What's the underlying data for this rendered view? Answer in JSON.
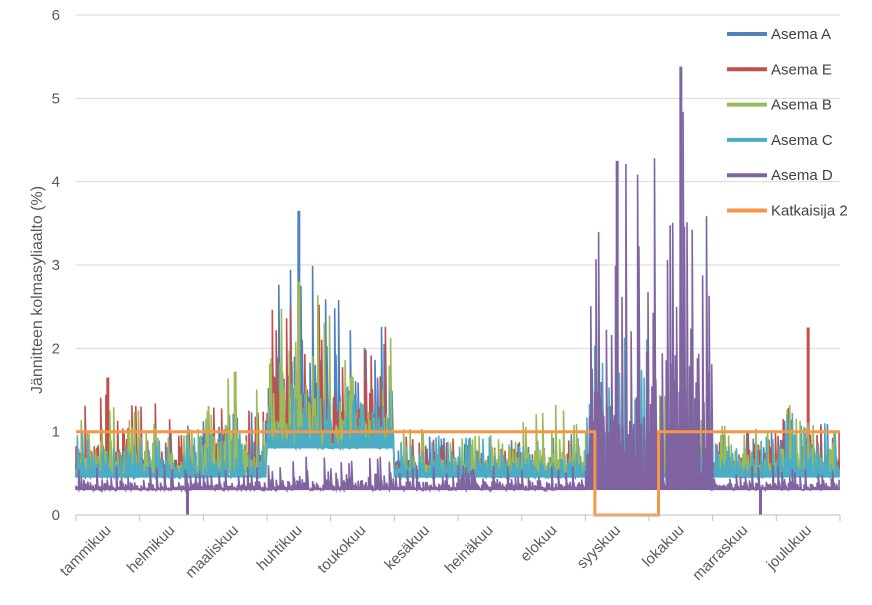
{
  "chart_data": {
    "type": "line",
    "title": "",
    "xlabel": "",
    "ylabel": "Jännitteen kolmasyliaalto (%)",
    "ylim": [
      0,
      6
    ],
    "yticks": [
      0,
      1,
      2,
      3,
      4,
      5,
      6
    ],
    "grid": true,
    "legend_position": "top-right",
    "categories": [
      "tammikuu",
      "helmikuu",
      "maaliskuu",
      "huhtikuu",
      "toukokuu",
      "kesäkuu",
      "heinäkuu",
      "elokuu",
      "syyskuu",
      "lokakuu",
      "marraskuu",
      "joulukuu"
    ],
    "series": [
      {
        "name": "Asema A",
        "color": "#4f81bd",
        "monthly_envelope": [
          [
            0.45,
            1.05
          ],
          [
            0.45,
            1.1
          ],
          [
            0.5,
            1.25
          ],
          [
            1.0,
            3.05
          ],
          [
            0.9,
            2.6
          ],
          [
            0.45,
            0.95
          ],
          [
            0.45,
            0.95
          ],
          [
            0.45,
            1.0
          ],
          [
            0.5,
            1.0
          ],
          [
            0.5,
            1.1
          ],
          [
            0.45,
            1.05
          ],
          [
            0.5,
            1.2
          ]
        ],
        "peaks": [
          {
            "x": "huhtikuu",
            "value": 3.65
          },
          {
            "x": "lokakuu",
            "value": 2.47
          }
        ]
      },
      {
        "name": "Asema E",
        "color": "#c0504d",
        "monthly_envelope": [
          [
            0.5,
            1.45
          ],
          [
            0.5,
            1.35
          ],
          [
            0.5,
            1.35
          ],
          [
            0.9,
            2.55
          ],
          [
            0.8,
            2.3
          ],
          [
            0.5,
            0.95
          ],
          [
            0.5,
            0.95
          ],
          [
            0.5,
            1.0
          ],
          [
            0.5,
            1.0
          ],
          [
            0.5,
            1.0
          ],
          [
            0.5,
            1.25
          ],
          [
            0.5,
            1.3
          ]
        ],
        "peaks": [
          {
            "x": "tammikuu",
            "value": 1.65
          },
          {
            "x": "huhtikuu",
            "value": 2.75
          },
          {
            "x": "joulukuu",
            "value": 2.25
          }
        ]
      },
      {
        "name": "Asema B",
        "color": "#9bbb59",
        "monthly_envelope": [
          [
            0.5,
            1.35
          ],
          [
            0.5,
            1.1
          ],
          [
            0.5,
            1.7
          ],
          [
            0.8,
            2.7
          ],
          [
            0.8,
            2.15
          ],
          [
            0.5,
            1.15
          ],
          [
            0.5,
            1.0
          ],
          [
            0.5,
            1.35
          ],
          [
            0.5,
            1.0
          ],
          [
            0.5,
            1.6
          ],
          [
            0.5,
            1.15
          ],
          [
            0.5,
            1.4
          ]
        ],
        "peaks": [
          {
            "x": "maaliskuu",
            "value": 1.72
          },
          {
            "x": "huhtikuu",
            "value": 2.8
          }
        ]
      },
      {
        "name": "Asema C",
        "color": "#4bacc6",
        "monthly_envelope": [
          [
            0.45,
            1.0
          ],
          [
            0.45,
            1.0
          ],
          [
            0.45,
            1.05
          ],
          [
            0.8,
            1.6
          ],
          [
            0.8,
            1.55
          ],
          [
            0.45,
            1.0
          ],
          [
            0.45,
            1.0
          ],
          [
            0.45,
            1.1
          ],
          [
            0.45,
            2.2
          ],
          [
            0.45,
            1.1
          ],
          [
            0.45,
            1.05
          ],
          [
            0.45,
            1.25
          ]
        ],
        "peaks": [
          {
            "x": "syyskuu",
            "value": 2.2
          },
          {
            "x": "lokakuu",
            "value": 2.55
          }
        ]
      },
      {
        "name": "Asema D",
        "color": "#8064a2",
        "monthly_envelope": [
          [
            0.3,
            0.6
          ],
          [
            0.3,
            0.6
          ],
          [
            0.3,
            0.6
          ],
          [
            0.3,
            0.7
          ],
          [
            0.3,
            0.7
          ],
          [
            0.3,
            0.6
          ],
          [
            0.3,
            0.6
          ],
          [
            0.3,
            0.6
          ],
          [
            0.3,
            4.25
          ],
          [
            0.3,
            5.38
          ],
          [
            0.3,
            0.6
          ],
          [
            0.3,
            0.6
          ]
        ],
        "peaks": [
          {
            "x": "syyskuu",
            "value": 4.25
          },
          {
            "x": "lokakuu",
            "value": 5.38
          }
        ],
        "dips": [
          {
            "x": "helmikuu",
            "value": 0
          },
          {
            "x": "marraskuu",
            "value": 0
          }
        ]
      },
      {
        "name": "Katkaisija 2",
        "color": "#f79646",
        "step": [
          {
            "from": "tammikuu",
            "to": "syyskuu",
            "value": 1
          },
          {
            "from": "syyskuu",
            "to": "lokakuu",
            "value": 0
          },
          {
            "from": "lokakuu",
            "to": "joulukuu",
            "value": 1
          }
        ]
      }
    ]
  }
}
